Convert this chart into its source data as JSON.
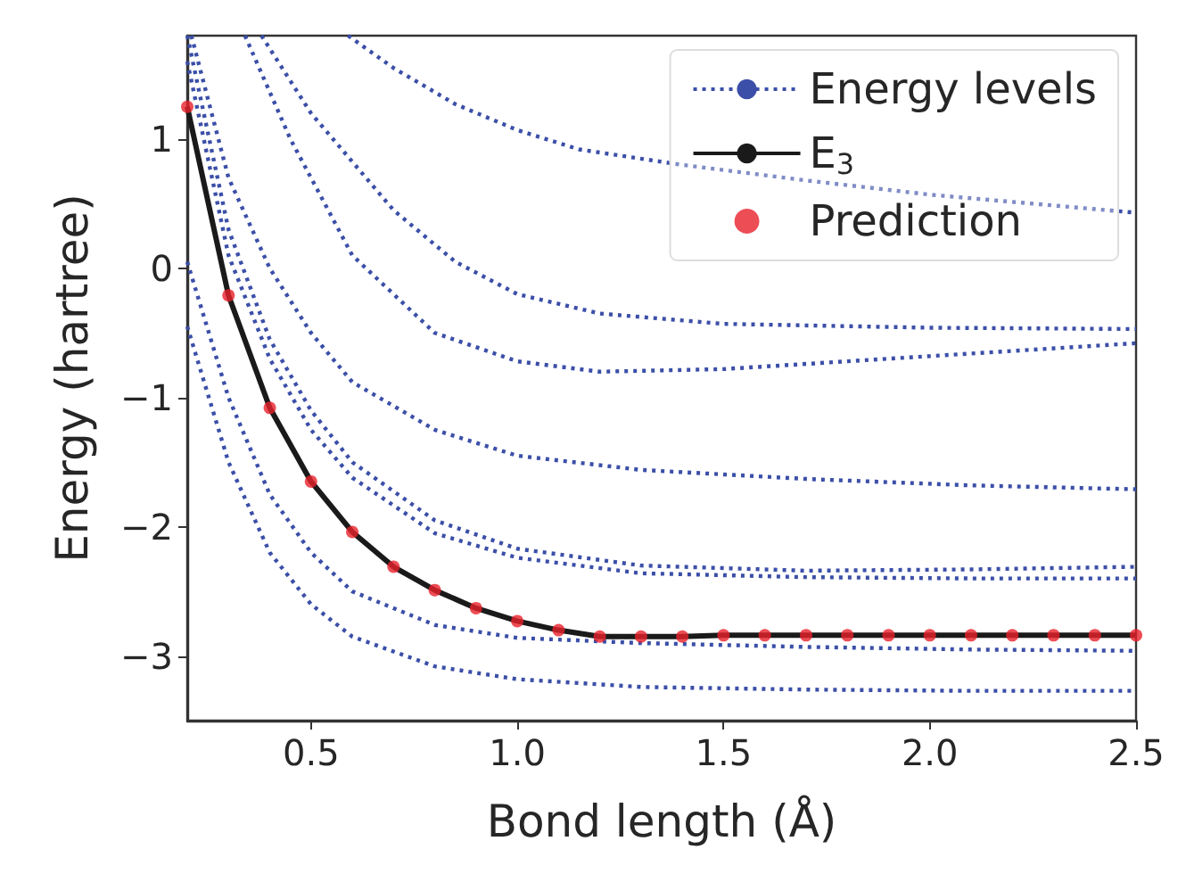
{
  "chart_data": {
    "type": "line",
    "xlabel": "Bond length (Å)",
    "ylabel": "Energy (hartree)",
    "x": [
      0.2,
      0.3,
      0.4,
      0.5,
      0.6,
      0.7,
      0.8,
      0.9,
      1.0,
      1.1,
      1.2,
      1.3,
      1.4,
      1.5,
      1.6,
      1.7,
      1.8,
      1.9,
      2.0,
      2.1,
      2.2,
      2.3,
      2.4,
      2.5
    ],
    "xlim": [
      0.2,
      2.5
    ],
    "xticks": [
      0.5,
      {
        "value": 1,
        "label": "1.0"
      },
      1.5,
      {
        "value": 2,
        "label": "2.0"
      },
      2.5
    ],
    "ylim": [
      -3.5,
      1.8
    ],
    "yticks": [
      {
        "value": -3,
        "label": "−3"
      },
      {
        "value": -2,
        "label": "−2"
      },
      {
        "value": -1,
        "label": "−1"
      },
      0,
      1
    ],
    "legend": "top right",
    "grid": false,
    "series": [
      {
        "name": "Energy levels",
        "line_style": "dotted",
        "marker": "none",
        "color": "#3b4fa8",
        "x": [
          0.59,
          0.7,
          0.85,
          1.0,
          1.15,
          1.4,
          1.7,
          2.0,
          2.5
        ],
        "values": [
          1.8,
          1.55,
          1.27,
          1.07,
          0.92,
          0.8,
          0.68,
          0.57,
          0.43
        ]
      },
      {
        "type": "line",
        "line_style": "dotted",
        "marker": "none",
        "color": "#3b4fa8",
        "x": [
          0.38,
          0.5,
          0.7,
          0.85,
          1.0,
          1.2,
          1.5,
          2.0,
          2.5
        ],
        "values": [
          1.8,
          1.2,
          0.45,
          0.05,
          -0.2,
          -0.35,
          -0.43,
          -0.46,
          -0.47
        ]
      },
      {
        "type": "line",
        "line_style": "dotted",
        "marker": "none",
        "color": "#3b4fa8",
        "x": [
          0.34,
          0.45,
          0.6,
          0.8,
          1.0,
          1.2,
          1.5,
          2.0,
          2.5
        ],
        "values": [
          1.8,
          1.0,
          0.1,
          -0.5,
          -0.72,
          -0.8,
          -0.78,
          -0.68,
          -0.58
        ]
      },
      {
        "type": "line",
        "line_style": "dotted",
        "marker": "none",
        "color": "#3b4fa8",
        "x": [
          0.21,
          0.3,
          0.4,
          0.5,
          0.6,
          0.8,
          1.0,
          1.3,
          1.7,
          2.1,
          2.5
        ],
        "values": [
          1.8,
          0.7,
          0.0,
          -0.5,
          -0.88,
          -1.25,
          -1.45,
          -1.56,
          -1.63,
          -1.68,
          -1.71
        ]
      },
      {
        "type": "line",
        "line_style": "dotted",
        "marker": "none",
        "color": "#3b4fa8",
        "x": [
          0.2,
          0.3,
          0.4,
          0.5,
          0.6,
          0.8,
          1.0,
          1.3,
          1.7,
          2.1,
          2.5
        ],
        "values": [
          1.8,
          0.3,
          -0.55,
          -1.1,
          -1.5,
          -1.95,
          -2.17,
          -2.3,
          -2.34,
          -2.33,
          -2.31
        ]
      },
      {
        "type": "line",
        "line_style": "dotted",
        "marker": "none",
        "color": "#3b4fa8",
        "x": [
          0.2,
          0.3,
          0.4,
          0.5,
          0.6,
          0.8,
          1.0,
          1.3,
          1.7,
          2.1,
          2.5
        ],
        "values": [
          1.6,
          0.1,
          -0.7,
          -1.25,
          -1.62,
          -2.05,
          -2.24,
          -2.36,
          -2.39,
          -2.4,
          -2.4
        ]
      },
      {
        "type": "line",
        "line_style": "dotted",
        "marker": "none",
        "color": "#3b4fa8",
        "x": [
          0.2,
          0.3,
          0.4,
          0.5,
          0.6,
          0.8,
          1.0,
          1.3,
          1.7,
          2.1,
          2.5
        ],
        "values": [
          0.05,
          -1.0,
          -1.75,
          -2.2,
          -2.5,
          -2.76,
          -2.86,
          -2.9,
          -2.93,
          -2.95,
          -2.96
        ]
      },
      {
        "type": "line",
        "line_style": "dotted",
        "marker": "none",
        "color": "#3b4fa8",
        "x": [
          0.2,
          0.3,
          0.4,
          0.5,
          0.6,
          0.8,
          1.0,
          1.3,
          1.7,
          2.1,
          2.5
        ],
        "values": [
          -0.45,
          -1.5,
          -2.2,
          -2.6,
          -2.85,
          -3.08,
          -3.18,
          -3.24,
          -3.26,
          -3.27,
          -3.27
        ]
      },
      {
        "name": "E$_{3}$",
        "line_style": "solid",
        "marker": "none",
        "color": "#1a1a1a",
        "values": [
          1.25,
          -0.21,
          -1.08,
          -1.65,
          -2.04,
          -2.31,
          -2.49,
          -2.63,
          -2.73,
          -2.8,
          -2.85,
          -2.85,
          -2.85,
          -2.84,
          -2.84,
          -2.84,
          -2.84,
          -2.84,
          -2.84,
          -2.84,
          -2.84,
          -2.84,
          -2.84,
          -2.84
        ]
      },
      {
        "name": "Prediction",
        "type": "scatter",
        "marker": "circle",
        "color": "#e8202a",
        "values": [
          1.25,
          -0.21,
          -1.08,
          -1.65,
          -2.04,
          -2.31,
          -2.49,
          -2.63,
          -2.73,
          -2.8,
          -2.85,
          -2.85,
          -2.85,
          -2.84,
          -2.84,
          -2.84,
          -2.84,
          -2.84,
          -2.84,
          -2.84,
          -2.84,
          -2.84,
          -2.84,
          -2.84
        ]
      }
    ]
  }
}
